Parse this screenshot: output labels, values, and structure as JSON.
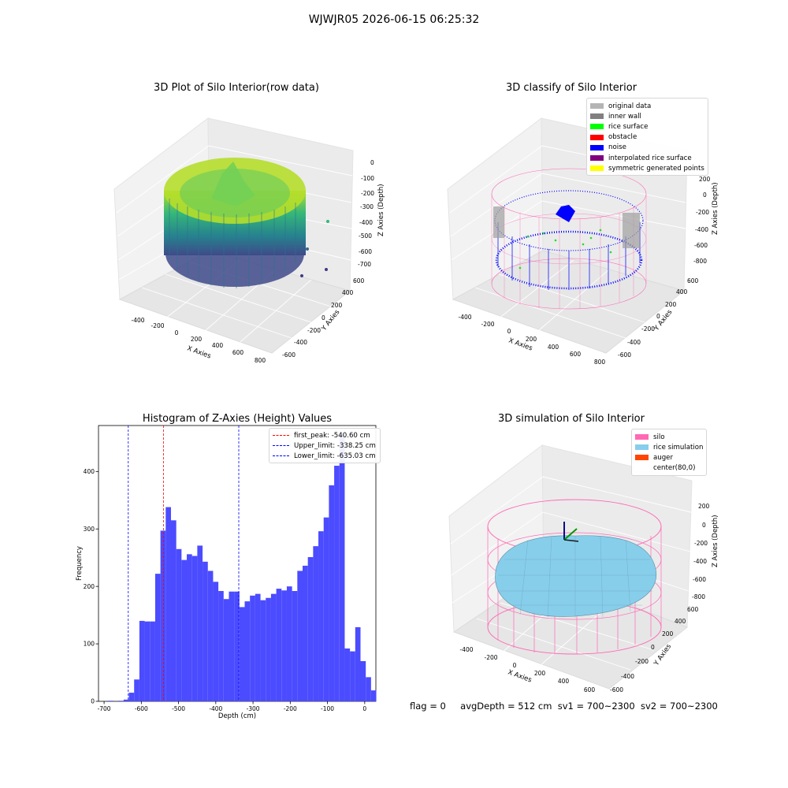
{
  "figure": {
    "suptitle": "WJWJR05 2026-06-15 06:25:32",
    "footer": {
      "flag": "flag = 0",
      "avg_depth": "avgDepth = 512 cm",
      "sv1": "sv1 = 700~2300",
      "sv2": "sv2 = 700~2300"
    }
  },
  "chart_data": [
    {
      "type": "scatter",
      "subtype": "3d",
      "title": "3D Plot of Silo Interior(row data)",
      "xlabel": "X Axies",
      "ylabel": "Y Axies",
      "zlabel": "Z Axies (Depth)",
      "x_ticks": [
        "-400",
        "-200",
        "0",
        "200",
        "400",
        "600",
        "800"
      ],
      "y_ticks": [
        "-600",
        "-400",
        "-200",
        "0",
        "200",
        "400",
        "600"
      ],
      "z_ticks": [
        "-700",
        "-600",
        "-500",
        "-400",
        "-300",
        "-200",
        "-100",
        "0"
      ],
      "colormap": "viridis",
      "grid": true
    },
    {
      "type": "scatter",
      "subtype": "3d",
      "title": "3D classify of Silo Interior",
      "xlabel": "X Axies",
      "ylabel": "Y Axies",
      "zlabel": "Z Axies (Depth)",
      "x_ticks": [
        "-400",
        "-200",
        "0",
        "200",
        "400",
        "600",
        "800"
      ],
      "y_ticks": [
        "-600",
        "-400",
        "-200",
        "0",
        "200",
        "400",
        "600"
      ],
      "z_ticks": [
        "-800",
        "-600",
        "-400",
        "-200",
        "0",
        "200"
      ],
      "legend_position": "top-right",
      "legend": [
        {
          "label": "original data",
          "color": "#b4b4b4"
        },
        {
          "label": "inner wall",
          "color": "#808080"
        },
        {
          "label": "rice surface",
          "color": "#00ff00"
        },
        {
          "label": "obstacle",
          "color": "#ff0000"
        },
        {
          "label": "noise",
          "color": "#0000ff"
        },
        {
          "label": "interpolated rice surface",
          "color": "#800080"
        },
        {
          "label": "symmetric generated points",
          "color": "#ffff00"
        }
      ],
      "grid": true
    },
    {
      "type": "bar",
      "subtype": "histogram",
      "title": "Histogram of Z-Axies (Height) Values",
      "xlabel": "Depth (cm)",
      "ylabel": "Frequency",
      "xlim": [
        -715,
        30
      ],
      "ylim": [
        0,
        480
      ],
      "x_ticks": [
        -700,
        -600,
        -500,
        -400,
        -300,
        -200,
        -100,
        0
      ],
      "y_ticks": [
        0,
        100,
        200,
        300,
        400
      ],
      "bar_color": "#4b4bff",
      "bin_start": -690,
      "bin_width": 14.14,
      "values": [
        1,
        0,
        1,
        3,
        15,
        38,
        140,
        139,
        139,
        222,
        297,
        338,
        315,
        265,
        246,
        256,
        253,
        271,
        243,
        227,
        208,
        192,
        178,
        191,
        191,
        164,
        174,
        184,
        187,
        176,
        180,
        187,
        196,
        193,
        200,
        192,
        227,
        236,
        251,
        270,
        296,
        320,
        376,
        410,
        465,
        92,
        87,
        129,
        70,
        42,
        19
      ],
      "vlines": [
        {
          "label": "first_peak: -540.60 cm",
          "x": -540.6,
          "color": "#ff0000"
        },
        {
          "label": "Upper_limit: -338.25 cm",
          "x": -338.25,
          "color": "#0000ff"
        },
        {
          "label": "Lower_limit: -635.03 cm",
          "x": -635.03,
          "color": "#0000ff"
        }
      ],
      "legend_position": "top-right"
    },
    {
      "type": "area",
      "subtype": "3d-surface",
      "title": "3D simulation of Silo Interior",
      "xlabel": "X Axies",
      "ylabel": "Y Axies",
      "zlabel": "Z Axies (Depth)",
      "x_ticks": [
        "-400",
        "-200",
        "0",
        "200",
        "400",
        "600"
      ],
      "y_ticks": [
        "-600",
        "-400",
        "-200",
        "0",
        "200",
        "400",
        "600"
      ],
      "z_ticks": [
        "-800",
        "-600",
        "-400",
        "-200",
        "0",
        "200"
      ],
      "legend_position": "top-right",
      "legend": [
        {
          "label": "silo",
          "color": "#ff69b4"
        },
        {
          "label": "rice simulation",
          "color": "#87ceeb"
        },
        {
          "label": "auger",
          "color": "#ff4500"
        },
        {
          "label": "center(80,0)",
          "color": "#ffffff"
        }
      ],
      "grid": true
    }
  ]
}
